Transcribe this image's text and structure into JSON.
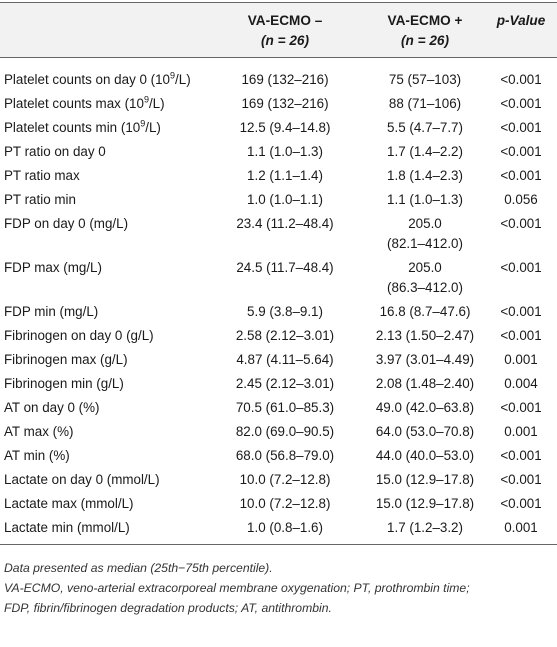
{
  "table": {
    "headers": {
      "variable": "",
      "neg_line1": "VA-ECMO –",
      "neg_line2": "(n = 26)",
      "pos_line1": "VA-ECMO +",
      "pos_line2": "(n = 26)",
      "p_value": "p-Value"
    },
    "rows": [
      {
        "label_pre": "Platelet counts on day 0 (10",
        "label_sup": "9",
        "label_post": "/L)",
        "neg": "169 (132–216)",
        "pos": "75 (57–103)",
        "pos2": "",
        "p": "<0.001"
      },
      {
        "label_pre": "Platelet counts max (10",
        "label_sup": "9",
        "label_post": "/L)",
        "neg": "169 (132–216)",
        "pos": "88 (71–106)",
        "pos2": "",
        "p": "<0.001"
      },
      {
        "label_pre": "Platelet counts min (10",
        "label_sup": "9",
        "label_post": "/L)",
        "neg": "12.5 (9.4–14.8)",
        "pos": "5.5 (4.7–7.7)",
        "pos2": "",
        "p": "<0.001"
      },
      {
        "label_pre": "PT ratio on day 0",
        "label_sup": "",
        "label_post": "",
        "neg": "1.1 (1.0–1.3)",
        "pos": "1.7 (1.4–2.2)",
        "pos2": "",
        "p": "<0.001"
      },
      {
        "label_pre": "PT ratio max",
        "label_sup": "",
        "label_post": "",
        "neg": "1.2 (1.1–1.4)",
        "pos": "1.8 (1.4–2.3)",
        "pos2": "",
        "p": "<0.001"
      },
      {
        "label_pre": "PT ratio min",
        "label_sup": "",
        "label_post": "",
        "neg": "1.0 (1.0–1.1)",
        "pos": "1.1 (1.0–1.3)",
        "pos2": "",
        "p": "0.056"
      },
      {
        "label_pre": "FDP on day 0 (mg/L)",
        "label_sup": "",
        "label_post": "",
        "neg": "23.4 (11.2–48.4)",
        "pos": "205.0",
        "pos2": "(82.1–412.0)",
        "p": "<0.001"
      },
      {
        "label_pre": "FDP max (mg/L)",
        "label_sup": "",
        "label_post": "",
        "neg": "24.5 (11.7–48.4)",
        "pos": "205.0",
        "pos2": "(86.3–412.0)",
        "p": "<0.001"
      },
      {
        "label_pre": "FDP min (mg/L)",
        "label_sup": "",
        "label_post": "",
        "neg": "5.9 (3.8–9.1)",
        "pos": "16.8 (8.7–47.6)",
        "pos2": "",
        "p": "<0.001"
      },
      {
        "label_pre": "Fibrinogen on day 0 (g/L)",
        "label_sup": "",
        "label_post": "",
        "neg": "2.58 (2.12–3.01)",
        "pos": "2.13 (1.50–2.47)",
        "pos2": "",
        "p": "<0.001"
      },
      {
        "label_pre": "Fibrinogen max (g/L)",
        "label_sup": "",
        "label_post": "",
        "neg": "4.87 (4.11–5.64)",
        "pos": "3.97 (3.01–4.49)",
        "pos2": "",
        "p": "0.001"
      },
      {
        "label_pre": "Fibrinogen min (g/L)",
        "label_sup": "",
        "label_post": "",
        "neg": "2.45 (2.12–3.01)",
        "pos": "2.08 (1.48–2.40)",
        "pos2": "",
        "p": "0.004"
      },
      {
        "label_pre": "AT on day 0 (%)",
        "label_sup": "",
        "label_post": "",
        "neg": "70.5 (61.0–85.3)",
        "pos": "49.0 (42.0–63.8)",
        "pos2": "",
        "p": "<0.001"
      },
      {
        "label_pre": "AT max (%)",
        "label_sup": "",
        "label_post": "",
        "neg": "82.0 (69.0–90.5)",
        "pos": "64.0 (53.0–70.8)",
        "pos2": "",
        "p": "0.001"
      },
      {
        "label_pre": "AT min (%)",
        "label_sup": "",
        "label_post": "",
        "neg": "68.0 (56.8–79.0)",
        "pos": "44.0 (40.0–53.0)",
        "pos2": "",
        "p": "<0.001"
      },
      {
        "label_pre": "Lactate on day 0 (mmol/L)",
        "label_sup": "",
        "label_post": "",
        "neg": "10.0 (7.2–12.8)",
        "pos": "15.0 (12.9–17.8)",
        "pos2": "",
        "p": "<0.001"
      },
      {
        "label_pre": "Lactate max (mmol/L)",
        "label_sup": "",
        "label_post": "",
        "neg": "10.0 (7.2–12.8)",
        "pos": "15.0 (12.9–17.8)",
        "pos2": "",
        "p": "<0.001"
      },
      {
        "label_pre": "Lactate min (mmol/L)",
        "label_sup": "",
        "label_post": "",
        "neg": "1.0 (0.8–1.6)",
        "pos": "1.7 (1.2–3.2)",
        "pos2": "",
        "p": "0.001"
      }
    ]
  },
  "footnotes": {
    "line1": "Data presented as median (25th−75th percentile).",
    "line2": "VA-ECMO, veno-arterial extracorporeal membrane oxygenation; PT, prothrombin time;",
    "line3": "FDP, fibrin/fibrinogen degradation products; AT, antithrombin."
  }
}
